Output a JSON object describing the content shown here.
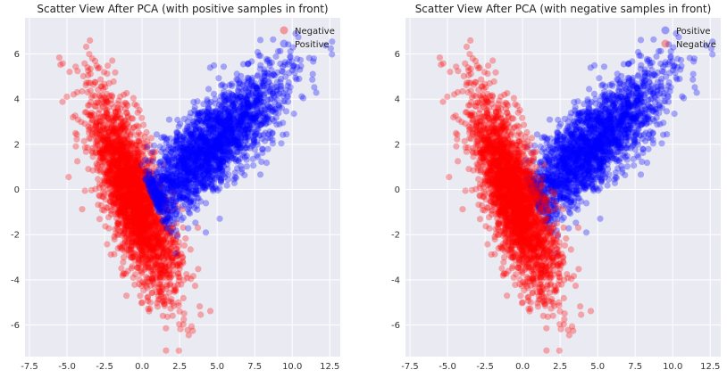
{
  "chart_data": [
    {
      "type": "scatter",
      "title": "Scatter View After PCA (with positive samples in front)",
      "xlim": [
        -7.8,
        13.2
      ],
      "ylim": [
        -7.4,
        7.6
      ],
      "xticks": [
        "-7.5",
        "-5.0",
        "-2.5",
        "0.0",
        "2.5",
        "5.0",
        "7.5",
        "10.0",
        "12.5"
      ],
      "xtick_values": [
        -7.5,
        -5.0,
        -2.5,
        0.0,
        2.5,
        5.0,
        7.5,
        10.0,
        12.5
      ],
      "yticks": [
        "-6",
        "-4",
        "-2",
        "0",
        "2",
        "4",
        "6"
      ],
      "ytick_values": [
        -6,
        -4,
        -2,
        0,
        2,
        4,
        6
      ],
      "grid": true,
      "legend_position": "top-right",
      "draw_order": [
        "Negative",
        "Positive"
      ],
      "series": [
        {
          "name": "Negative",
          "color": "#ff0000",
          "approx_points": 2600,
          "distribution": {
            "center": [
              -0.6,
              -0.3
            ],
            "direction": [
              -0.49,
              0.87
            ],
            "spread_main": 2.4,
            "spread_cross": 0.85,
            "range_main": [
              -7.5,
              7.8
            ]
          }
        },
        {
          "name": "Positive",
          "color": "#0000ff",
          "approx_points": 2200,
          "distribution": {
            "center": [
              4.6,
              1.9
            ],
            "direction": [
              0.85,
              0.53
            ],
            "spread_main": 2.8,
            "spread_cross": 0.85,
            "range_main": [
              -4.5,
              9.5
            ]
          }
        }
      ]
    },
    {
      "type": "scatter",
      "title": "Scatter View After PCA (with negative samples in front)",
      "xlim": [
        -7.8,
        13.2
      ],
      "ylim": [
        -7.4,
        7.6
      ],
      "xticks": [
        "-7.5",
        "-5.0",
        "-2.5",
        "0.0",
        "2.5",
        "5.0",
        "7.5",
        "10.0",
        "12.5"
      ],
      "xtick_values": [
        -7.5,
        -5.0,
        -2.5,
        0.0,
        2.5,
        5.0,
        7.5,
        10.0,
        12.5
      ],
      "yticks": [
        "-6",
        "-4",
        "-2",
        "0",
        "2",
        "4",
        "6"
      ],
      "ytick_values": [
        -6,
        -4,
        -2,
        0,
        2,
        4,
        6
      ],
      "grid": true,
      "legend_position": "top-right",
      "draw_order": [
        "Positive",
        "Negative"
      ],
      "series": [
        {
          "name": "Positive",
          "color": "#0000ff",
          "approx_points": 2200,
          "distribution": {
            "center": [
              4.6,
              1.9
            ],
            "direction": [
              0.85,
              0.53
            ],
            "spread_main": 2.8,
            "spread_cross": 0.85,
            "range_main": [
              -4.5,
              9.5
            ]
          }
        },
        {
          "name": "Negative",
          "color": "#ff0000",
          "approx_points": 2600,
          "distribution": {
            "center": [
              -0.6,
              -0.3
            ],
            "direction": [
              -0.49,
              0.87
            ],
            "spread_main": 2.4,
            "spread_cross": 0.85,
            "range_main": [
              -7.5,
              7.8
            ]
          }
        }
      ]
    }
  ]
}
